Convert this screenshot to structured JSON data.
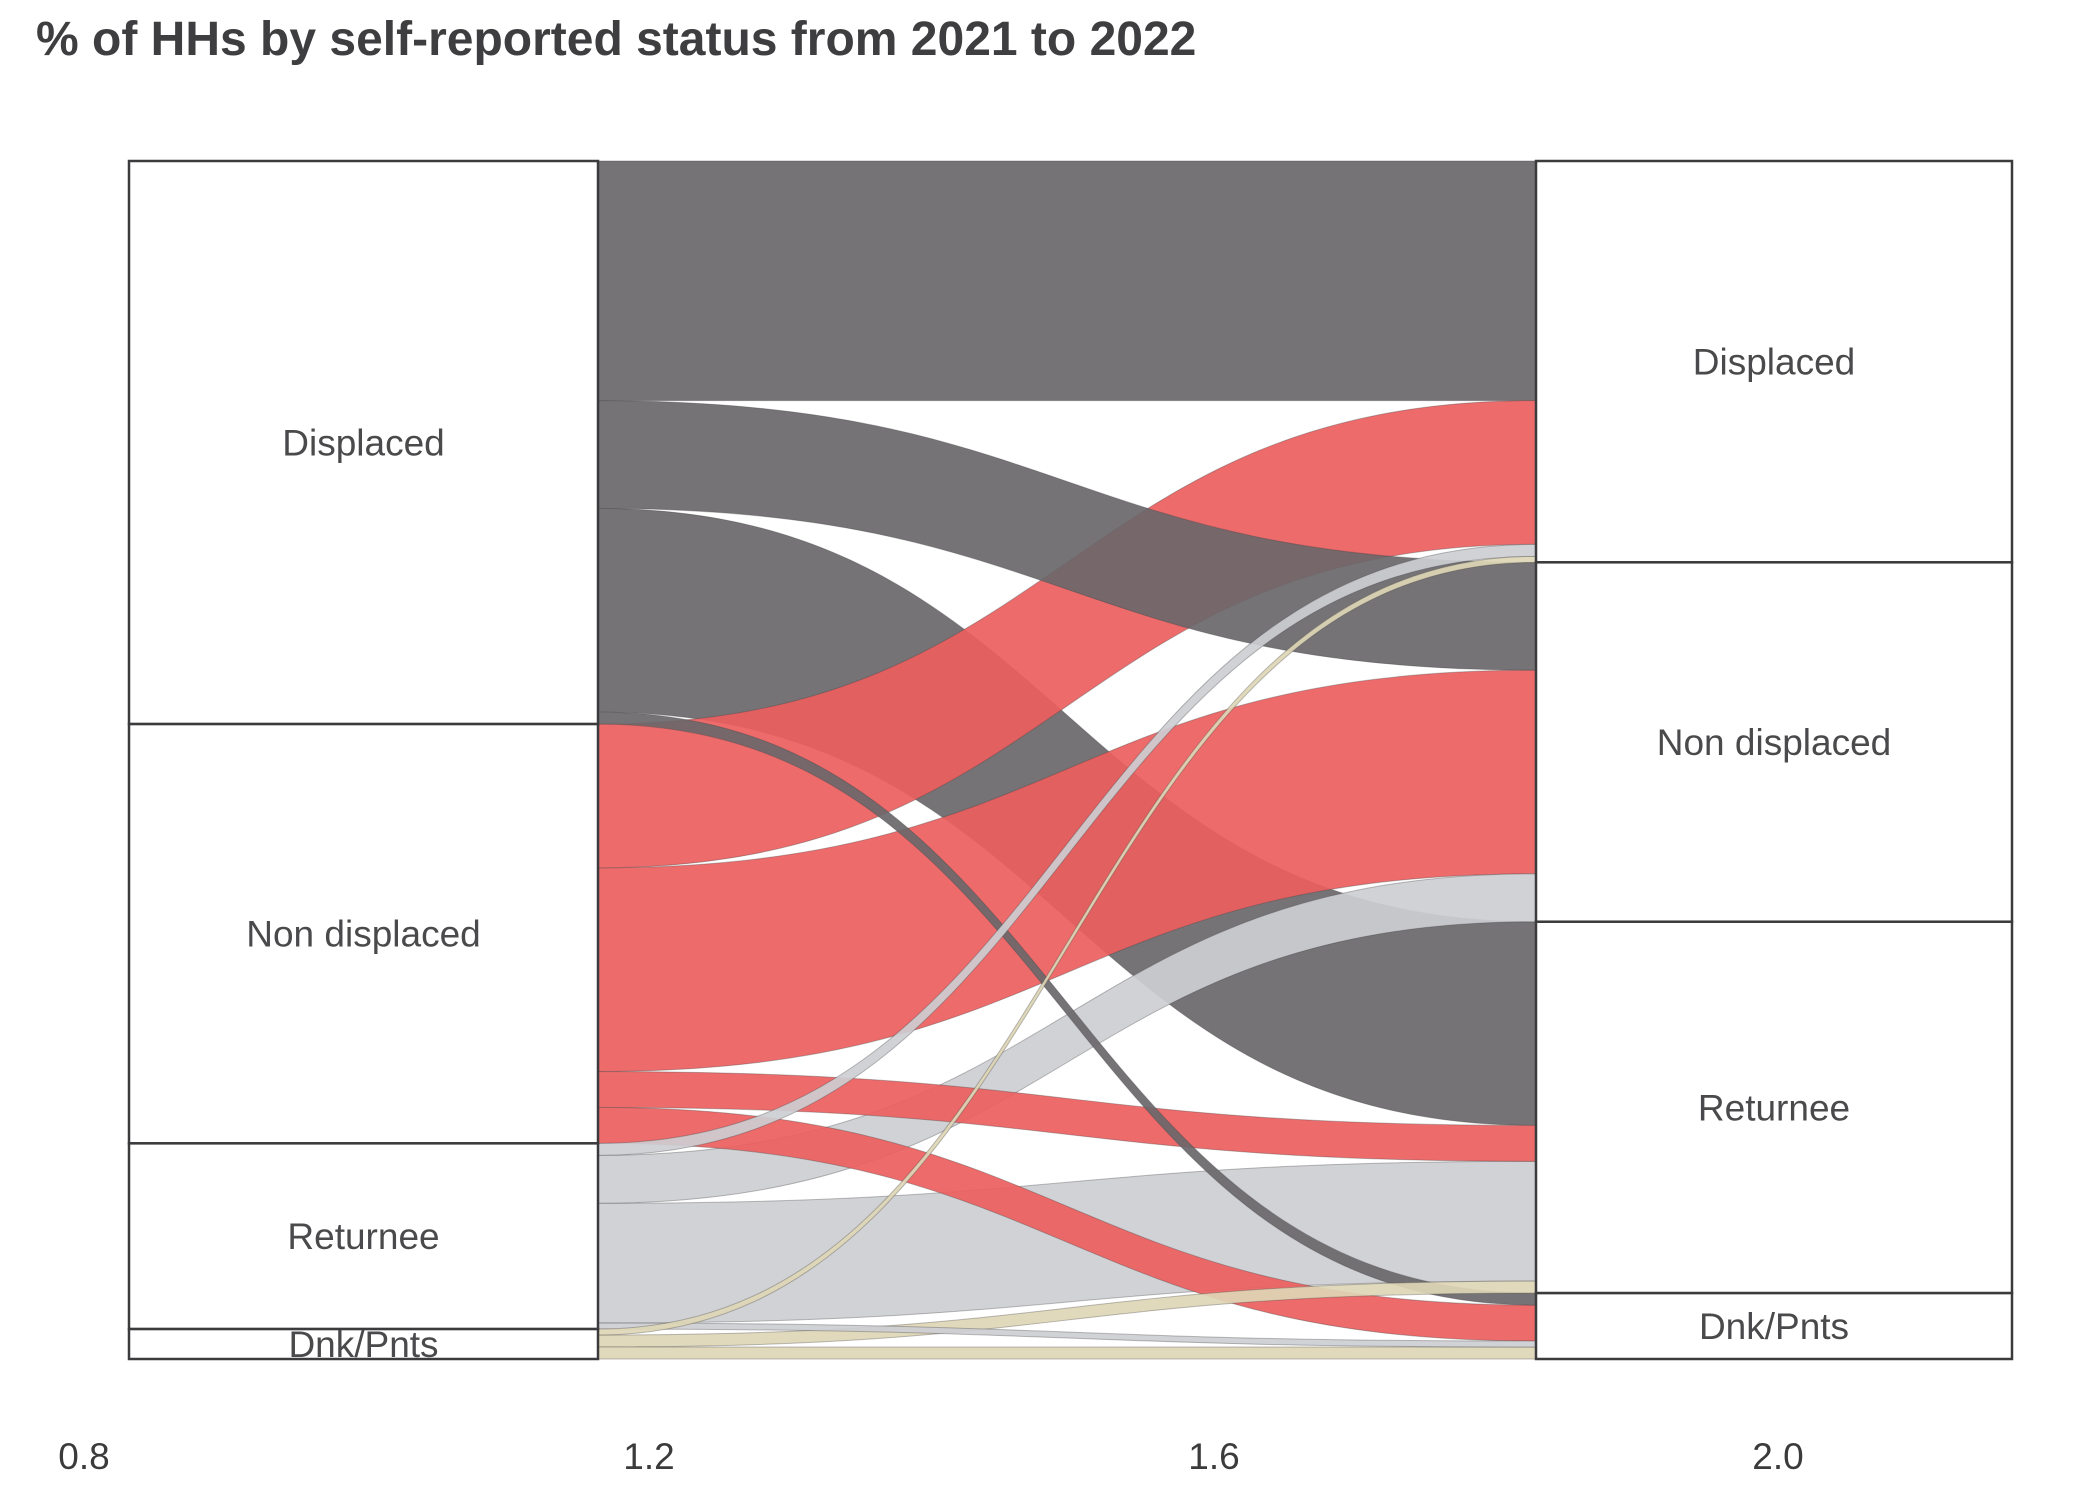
{
  "chart_data": {
    "type": "sankey",
    "title": "% of HHs by self-reported status from 2021 to 2022",
    "unit": "% of households",
    "columns": [
      {
        "year": "2021",
        "nodes": [
          {
            "label": "Displaced",
            "value": 47
          },
          {
            "label": "Non displaced",
            "value": 35
          },
          {
            "label": "Returnee",
            "value": 15.5
          },
          {
            "label": "Dnk/Pnts",
            "value": 2.5
          }
        ]
      },
      {
        "year": "2022",
        "nodes": [
          {
            "label": "Displaced",
            "value": 33.5
          },
          {
            "label": "Non displaced",
            "value": 30
          },
          {
            "label": "Returnee",
            "value": 31
          },
          {
            "label": "Dnk/Pnts",
            "value": 5.5
          }
        ]
      }
    ],
    "links": [
      {
        "source": "Displaced",
        "target": "Displaced",
        "value": 20
      },
      {
        "source": "Displaced",
        "target": "Non displaced",
        "value": 9
      },
      {
        "source": "Displaced",
        "target": "Returnee",
        "value": 17
      },
      {
        "source": "Displaced",
        "target": "Dnk/Pnts",
        "value": 1
      },
      {
        "source": "Non displaced",
        "target": "Displaced",
        "value": 12
      },
      {
        "source": "Non displaced",
        "target": "Non displaced",
        "value": 17
      },
      {
        "source": "Non displaced",
        "target": "Returnee",
        "value": 3
      },
      {
        "source": "Non displaced",
        "target": "Dnk/Pnts",
        "value": 3
      },
      {
        "source": "Returnee",
        "target": "Displaced",
        "value": 1
      },
      {
        "source": "Returnee",
        "target": "Non displaced",
        "value": 4
      },
      {
        "source": "Returnee",
        "target": "Returnee",
        "value": 10
      },
      {
        "source": "Returnee",
        "target": "Dnk/Pnts",
        "value": 0.5
      },
      {
        "source": "Dnk/Pnts",
        "target": "Displaced",
        "value": 0.5
      },
      {
        "source": "Dnk/Pnts",
        "target": "Returnee",
        "value": 1
      },
      {
        "source": "Dnk/Pnts",
        "target": "Dnk/Pnts",
        "value": 1
      }
    ],
    "colors": {
      "Displaced": "#6a676a",
      "Non displaced": "#ed5e5e",
      "Returnee": "#cdced2",
      "Dnk/Pnts": "#ded6b5"
    },
    "node_border_color": "#3b3a3c",
    "node_fill_color": "#ffffff",
    "x_axis_ticks": [
      "0.8",
      "1.2",
      "1.6",
      "2.0"
    ],
    "legend": "none",
    "grid": "off"
  }
}
